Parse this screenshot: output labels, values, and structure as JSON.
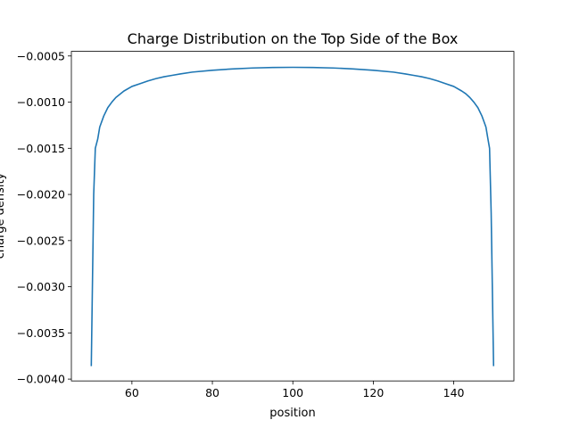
{
  "chart_data": {
    "type": "line",
    "title": "Charge Distribution on the Top Side of the Box",
    "xlabel": "position",
    "ylabel": "charge density",
    "xlim": [
      44.95,
      154.95
    ],
    "ylim": [
      -0.00402,
      -0.00045
    ],
    "xticks": [
      60,
      80,
      100,
      120,
      140
    ],
    "xtick_labels": [
      "60",
      "80",
      "100",
      "120",
      "140"
    ],
    "yticks": [
      -0.0005,
      -0.001,
      -0.0015,
      -0.002,
      -0.0025,
      -0.003,
      -0.0035,
      -0.004
    ],
    "ytick_labels": [
      "−0.0005",
      "−0.0010",
      "−0.0015",
      "−0.0020",
      "−0.0025",
      "−0.0030",
      "−0.0035",
      "−0.0040"
    ],
    "grid": false,
    "color": "#1f77b4",
    "series": [
      {
        "x": [
          49.9,
          50.5,
          50.9,
          51.5,
          52,
          53,
          54,
          55,
          56,
          58,
          60,
          62,
          64,
          66,
          68,
          70,
          72,
          75,
          80,
          85,
          90,
          95,
          100,
          105,
          110,
          115,
          120,
          125,
          128,
          130,
          132,
          134,
          136,
          138,
          140,
          142,
          143,
          144,
          145,
          146,
          147,
          147.5,
          148,
          148.5,
          148.9,
          149.3,
          149.9
        ],
        "y": [
          -0.00386,
          -0.002,
          -0.0015,
          -0.0014,
          -0.00127,
          -0.00115,
          -0.00106,
          -0.001,
          -0.00095,
          -0.00088,
          -0.00083,
          -0.0008,
          -0.00077,
          -0.000745,
          -0.000725,
          -0.00071,
          -0.000695,
          -0.000675,
          -0.000655,
          -0.00064,
          -0.00063,
          -0.000625,
          -0.000623,
          -0.000625,
          -0.00063,
          -0.00064,
          -0.000655,
          -0.000675,
          -0.000695,
          -0.00071,
          -0.000725,
          -0.000745,
          -0.00077,
          -0.0008,
          -0.00083,
          -0.00088,
          -0.00091,
          -0.00095,
          -0.001,
          -0.00106,
          -0.00115,
          -0.00121,
          -0.00127,
          -0.0014,
          -0.0015,
          -0.0022,
          -0.00386
        ]
      }
    ]
  }
}
